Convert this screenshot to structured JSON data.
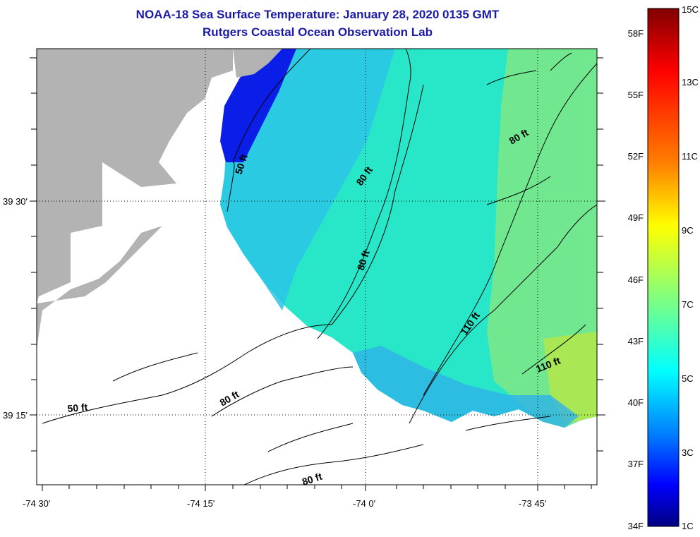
{
  "header": {
    "title_line1": "NOAA-18 Sea Surface Temperature:  January 28, 2020 0135 GMT",
    "title_line2": "Rutgers Coastal Ocean Observation Lab"
  },
  "map": {
    "lat_labels": [
      "39 30'",
      "39 15'"
    ],
    "lon_labels": [
      "-74 30'",
      "-74 15'",
      "-74 0'",
      "-73 45'"
    ],
    "contour_labels": [
      "50 ft",
      "80 ft",
      "80 ft",
      "80 ft",
      "110 ft",
      "110 ft",
      "50 ft",
      "80 ft",
      "80 ft"
    ],
    "colors": {
      "land": "#b3b3b3",
      "no_data": "#ffffff",
      "contour": "#000000"
    }
  },
  "colorbar": {
    "fahrenheit_labels": [
      "58F",
      "55F",
      "52F",
      "49F",
      "46F",
      "43F",
      "40F",
      "37F",
      "34F"
    ],
    "celsius_labels": [
      "15C",
      "13C",
      "11C",
      "9C",
      "7C",
      "5C",
      "3C",
      "1C"
    ],
    "scale": [
      "#800000",
      "#ff0000",
      "#ff8000",
      "#ffff00",
      "#80ff80",
      "#00ffff",
      "#0080ff",
      "#0000ff",
      "#000080"
    ]
  }
}
